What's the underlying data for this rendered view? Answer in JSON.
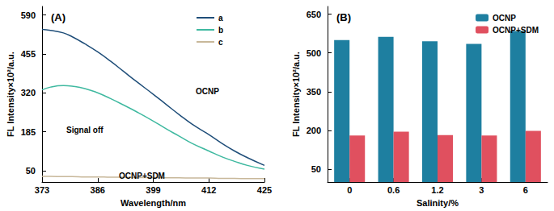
{
  "chart_data": [
    {
      "type": "line",
      "title": "(A)",
      "x_label": "Wavelength/nm",
      "y_label": "FL Intensity×10²/a.u.",
      "x": [
        373,
        375,
        378,
        380,
        383,
        386,
        389,
        392,
        395,
        399,
        402,
        405,
        408,
        412,
        415,
        418,
        421,
        425
      ],
      "series": [
        {
          "name": "a",
          "color": "#1f4e79",
          "values": [
            540,
            537,
            528,
            515,
            490,
            462,
            430,
            395,
            360,
            315,
            280,
            245,
            212,
            175,
            145,
            118,
            95,
            68
          ]
        },
        {
          "name": "b",
          "color": "#3fb9a0",
          "values": [
            330,
            340,
            345,
            343,
            335,
            320,
            300,
            278,
            255,
            222,
            195,
            170,
            145,
            118,
            98,
            82,
            68,
            55
          ]
        },
        {
          "name": "c",
          "color": "#c8b89a",
          "values": [
            30,
            30,
            29,
            29,
            28,
            28,
            27,
            27,
            26,
            26,
            25,
            25,
            24,
            24,
            23,
            23,
            22,
            22
          ]
        }
      ],
      "xlim": [
        373,
        425
      ],
      "xticks": [
        373,
        386,
        399,
        412,
        425
      ],
      "ylim": [
        10,
        620
      ],
      "yticks": [
        50,
        185,
        320,
        455,
        590
      ],
      "grid": false,
      "legend": "upper right",
      "annotations": [
        "OCNP",
        "Signal off",
        "OCNP+SDM"
      ]
    },
    {
      "type": "bar",
      "title": "(B)",
      "x_label": "Salinity/%",
      "y_label": "FL Intensity×10²/a.u.",
      "categories": [
        "0",
        "0.6",
        "1.2",
        "3",
        "6"
      ],
      "series": [
        {
          "name": "OCNP",
          "color": "#1e7fa0",
          "values": [
            550,
            562,
            545,
            535,
            585
          ]
        },
        {
          "name": "OCNP+SDM",
          "color": "#e0505f",
          "values": [
            180,
            195,
            182,
            180,
            198
          ]
        }
      ],
      "ylim": [
        0,
        680
      ],
      "yticks": [
        50,
        200,
        350,
        500,
        650
      ],
      "grid": false,
      "legend": "upper right"
    }
  ]
}
